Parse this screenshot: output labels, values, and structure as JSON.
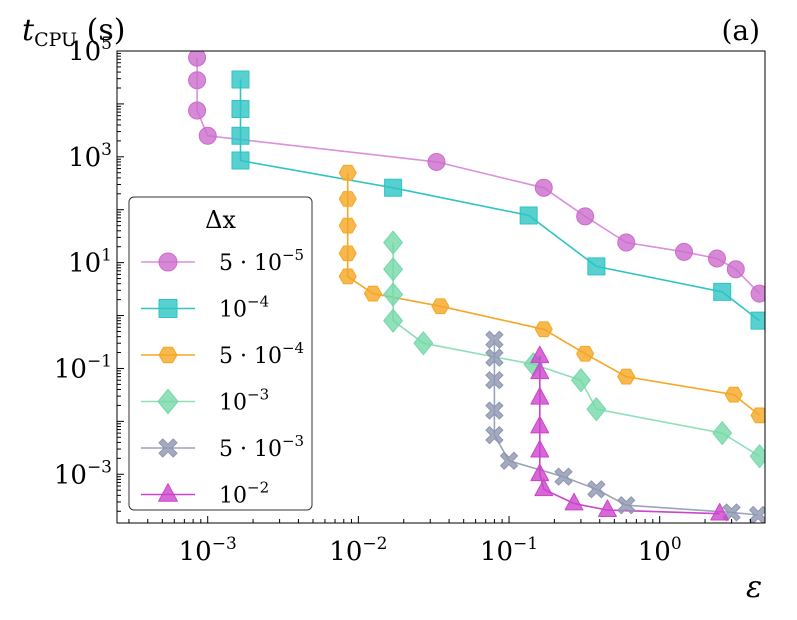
{
  "chart_data": {
    "type": "scatter",
    "panel_label": "(a)",
    "xlabel": "ε",
    "ylabel": {
      "base": "t",
      "sub": "CPU",
      "unit": "(s)"
    },
    "xscale": "log",
    "yscale": "log",
    "xlim": [
      0.00025,
      5
    ],
    "ylim": [
      0.00012,
      100000
    ],
    "x_ticks": [
      {
        "value": 0.001,
        "base": "10",
        "exp": "−3"
      },
      {
        "value": 0.01,
        "base": "10",
        "exp": "−2"
      },
      {
        "value": 0.1,
        "base": "10",
        "exp": "−1"
      },
      {
        "value": 1,
        "base": "10",
        "exp": "0"
      }
    ],
    "y_ticks": [
      {
        "value": 100000,
        "base": "10",
        "exp": "5"
      },
      {
        "value": 1000,
        "base": "10",
        "exp": "3"
      },
      {
        "value": 10,
        "base": "10",
        "exp": "1"
      },
      {
        "value": 0.1,
        "base": "10",
        "exp": "−1"
      },
      {
        "value": 0.001,
        "base": "10",
        "exp": "−3"
      }
    ],
    "legend": {
      "title": "Δx",
      "position": "center-left"
    },
    "series": [
      {
        "name": "5 · 10⁻⁵",
        "label_base": "5 · 10",
        "label_exp": "−5",
        "marker": "circle",
        "color": "#cc6ccc",
        "line_color": "#dd8fdd",
        "points": [
          [
            0.00085,
            75000
          ],
          [
            0.00085,
            28000
          ],
          [
            0.00085,
            7500
          ],
          [
            0.001,
            2500
          ],
          [
            0.033,
            800
          ],
          [
            0.17,
            260
          ],
          [
            0.32,
            75
          ],
          [
            0.6,
            24
          ],
          [
            1.45,
            16
          ],
          [
            2.4,
            12
          ],
          [
            3.2,
            7.5
          ],
          [
            4.6,
            2.6
          ]
        ]
      },
      {
        "name": "10⁻⁴",
        "label_base": "10",
        "label_exp": "−4",
        "marker": "square",
        "color": "#2ec4c4",
        "line_color": "#2ec4c4",
        "points": [
          [
            0.00165,
            29000
          ],
          [
            0.00165,
            8000
          ],
          [
            0.00165,
            2500
          ],
          [
            0.00165,
            850
          ],
          [
            0.017,
            260
          ],
          [
            0.135,
            78
          ],
          [
            0.38,
            8.5
          ],
          [
            2.6,
            2.8
          ],
          [
            4.6,
            0.8
          ]
        ]
      },
      {
        "name": "5 · 10⁻⁴",
        "label_base": "5 · 10",
        "label_exp": "−4",
        "marker": "hexagon",
        "color": "#f5a623",
        "line_color": "#f5a623",
        "points": [
          [
            0.0085,
            500
          ],
          [
            0.0085,
            160
          ],
          [
            0.0085,
            50
          ],
          [
            0.0085,
            15
          ],
          [
            0.0085,
            5.5
          ],
          [
            0.0125,
            2.6
          ],
          [
            0.035,
            1.5
          ],
          [
            0.17,
            0.55
          ],
          [
            0.32,
            0.19
          ],
          [
            0.6,
            0.07
          ],
          [
            3.1,
            0.032
          ],
          [
            4.6,
            0.013
          ]
        ]
      },
      {
        "name": "10⁻³",
        "label_base": "10",
        "label_exp": "−3",
        "marker": "diamond",
        "color": "#74d8a8",
        "line_color": "#8fdfb8",
        "points": [
          [
            0.017,
            24
          ],
          [
            0.017,
            7.5
          ],
          [
            0.017,
            2.5
          ],
          [
            0.017,
            0.8
          ],
          [
            0.027,
            0.3
          ],
          [
            0.145,
            0.12
          ],
          [
            0.3,
            0.06
          ],
          [
            0.38,
            0.017
          ],
          [
            2.6,
            0.006
          ],
          [
            4.6,
            0.0022
          ]
        ]
      },
      {
        "name": "5 · 10⁻³",
        "label_base": "5 · 10",
        "label_exp": "−3",
        "marker": "cross",
        "color": "#8d96b0",
        "line_color": "#9aa3bb",
        "points": [
          [
            0.08,
            0.35
          ],
          [
            0.08,
            0.16
          ],
          [
            0.08,
            0.06
          ],
          [
            0.08,
            0.016
          ],
          [
            0.08,
            0.0055
          ],
          [
            0.1,
            0.0018
          ],
          [
            0.23,
            0.0009
          ],
          [
            0.38,
            0.00052
          ],
          [
            0.6,
            0.00026
          ],
          [
            3.0,
            0.00019
          ],
          [
            4.5,
            0.00017
          ]
        ]
      },
      {
        "name": "10⁻²",
        "label_base": "10",
        "label_exp": "−2",
        "marker": "triangle",
        "color": "#cc44cc",
        "line_color": "#cc44cc",
        "points": [
          [
            0.16,
            0.17
          ],
          [
            0.16,
            0.085
          ],
          [
            0.16,
            0.028
          ],
          [
            0.16,
            0.008
          ],
          [
            0.16,
            0.0028
          ],
          [
            0.16,
            0.001
          ],
          [
            0.17,
            0.00052
          ],
          [
            0.27,
            0.00028
          ],
          [
            0.45,
            0.00021
          ],
          [
            2.5,
            0.00018
          ]
        ]
      }
    ]
  }
}
